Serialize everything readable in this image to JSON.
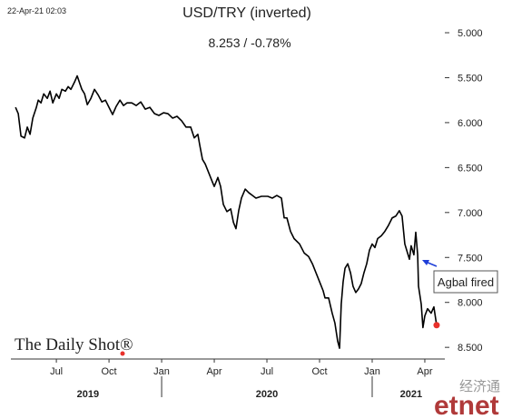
{
  "chart_data": {
    "type": "line",
    "title": "USD/TRY (inverted)",
    "subtitle": "8.253  /  -0.78%",
    "timestamp": "22-Apr-21 02:03",
    "annotation": "Agbal fired",
    "source_logo": "The Daily Shot®",
    "watermark": [
      "经济通",
      "etnet"
    ],
    "color": "#000000",
    "last_point_color": "#e8312b",
    "invert_y": true,
    "grid": false,
    "xlim": [
      2019.284,
      2021.345
    ],
    "ylim": [
      4.65,
      8.65
    ],
    "yticks": [
      {
        "value": 5,
        "label": "5.000"
      },
      {
        "value": 5.5,
        "label": "5.500"
      },
      {
        "value": 6,
        "label": "6.000"
      },
      {
        "value": 6.5,
        "label": "6.500"
      },
      {
        "value": 7,
        "label": "7.000"
      },
      {
        "value": 7.5,
        "label": "7.500"
      },
      {
        "value": 8,
        "label": "8.000"
      },
      {
        "value": 8.5,
        "label": "8.500"
      }
    ],
    "xticks": [
      {
        "value": 2019.5,
        "label": "Jul"
      },
      {
        "value": 2019.75,
        "label": "Oct"
      },
      {
        "value": 2020,
        "label": "Jan"
      },
      {
        "value": 2020.25,
        "label": "Apr"
      },
      {
        "value": 2020.5,
        "label": "Jul"
      },
      {
        "value": 2020.75,
        "label": "Oct"
      },
      {
        "value": 2021,
        "label": "Jan"
      },
      {
        "value": 2021.25,
        "label": "Apr"
      }
    ],
    "year_labels": [
      {
        "value": 2019.65,
        "label": "2019"
      },
      {
        "value": 2020.5,
        "label": "2020"
      },
      {
        "value": 2021.185,
        "label": "2021"
      }
    ],
    "year_separators": [
      2020,
      2021
    ],
    "x": [
      2019.306,
      2019.319,
      2019.332,
      2019.349,
      2019.362,
      2019.375,
      2019.388,
      2019.405,
      2019.414,
      2019.427,
      2019.44,
      2019.457,
      2019.47,
      2019.483,
      2019.5,
      2019.513,
      2019.526,
      2019.543,
      2019.556,
      2019.569,
      2019.586,
      2019.599,
      2019.612,
      2019.621,
      2019.634,
      2019.647,
      2019.664,
      2019.681,
      2019.698,
      2019.716,
      2019.733,
      2019.75,
      2019.767,
      2019.784,
      2019.802,
      2019.819,
      2019.836,
      2019.858,
      2019.879,
      2019.901,
      2019.922,
      2019.944,
      2019.966,
      2019.987,
      2020.009,
      2020.03,
      2020.052,
      2020.073,
      2020.095,
      2020.116,
      2020.138,
      2020.155,
      2020.172,
      2020.181,
      2020.194,
      2020.207,
      2020.224,
      2020.241,
      2020.25,
      2020.267,
      2020.28,
      2020.293,
      2020.31,
      2020.328,
      2020.341,
      2020.353,
      2020.366,
      2020.379,
      2020.397,
      2020.414,
      2020.431,
      2020.448,
      2020.474,
      2020.504,
      2020.526,
      2020.547,
      2020.569,
      2020.582,
      2020.595,
      2020.612,
      2020.629,
      2020.655,
      2020.677,
      2020.698,
      2020.716,
      2020.733,
      2020.75,
      2020.767,
      2020.776,
      2020.793,
      2020.81,
      2020.823,
      2020.836,
      2020.845,
      2020.853,
      2020.862,
      2020.871,
      2020.884,
      2020.897,
      2020.909,
      2020.922,
      2020.935,
      2020.948,
      2020.961,
      2020.974,
      2020.987,
      2021.0,
      2021.013,
      2021.026,
      2021.043,
      2021.06,
      2021.078,
      2021.095,
      2021.112,
      2021.129,
      2021.142,
      2021.155,
      2021.164,
      2021.177,
      2021.185,
      2021.198,
      2021.207,
      2021.216,
      2021.22,
      2021.233,
      2021.241,
      2021.25,
      2021.263,
      2021.28,
      2021.293,
      2021.306
    ],
    "values": [
      5.83,
      5.9,
      6.15,
      6.17,
      6.05,
      6.13,
      5.95,
      5.83,
      5.75,
      5.78,
      5.68,
      5.73,
      5.65,
      5.78,
      5.68,
      5.73,
      5.63,
      5.65,
      5.6,
      5.63,
      5.55,
      5.48,
      5.57,
      5.63,
      5.68,
      5.8,
      5.73,
      5.63,
      5.69,
      5.77,
      5.75,
      5.83,
      5.91,
      5.82,
      5.75,
      5.81,
      5.78,
      5.78,
      5.81,
      5.77,
      5.85,
      5.83,
      5.9,
      5.92,
      5.89,
      5.9,
      5.95,
      5.93,
      5.98,
      6.05,
      6.05,
      6.17,
      6.13,
      6.25,
      6.41,
      6.46,
      6.56,
      6.66,
      6.71,
      6.61,
      6.71,
      6.91,
      6.99,
      6.96,
      7.11,
      7.18,
      6.98,
      6.84,
      6.74,
      6.78,
      6.81,
      6.84,
      6.82,
      6.82,
      6.84,
      6.81,
      6.84,
      7.06,
      7.06,
      7.21,
      7.29,
      7.35,
      7.45,
      7.49,
      7.57,
      7.67,
      7.77,
      7.87,
      7.95,
      7.95,
      8.12,
      8.23,
      8.43,
      8.51,
      8.02,
      7.77,
      7.62,
      7.57,
      7.67,
      7.82,
      7.89,
      7.85,
      7.79,
      7.67,
      7.57,
      7.42,
      7.35,
      7.39,
      7.29,
      7.26,
      7.21,
      7.14,
      7.06,
      7.04,
      6.98,
      7.04,
      7.35,
      7.42,
      7.52,
      7.37,
      7.47,
      7.22,
      7.47,
      7.82,
      8.02,
      8.28,
      8.15,
      8.07,
      8.12,
      8.05,
      8.253
    ]
  }
}
